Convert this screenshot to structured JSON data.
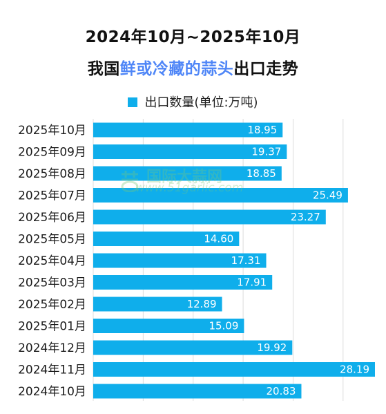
{
  "header": {
    "line1": "2024年10月~2025年10月",
    "line2_prefix": "我国",
    "line2_highlight": "鲜或冷藏的蒜头",
    "line2_suffix": "出口走势"
  },
  "watermark": {
    "text": "国际大蒜网",
    "url": "www.51garlic.com"
  },
  "colors": {
    "bar": "#0faeeb",
    "highlight": "#4f86f7",
    "grid": "#dcdcdc"
  },
  "chart_data": {
    "type": "bar",
    "orientation": "horizontal",
    "legend": "出口数量(单位:万吨)",
    "legend_position": "top-center",
    "categories": [
      "2025年10月",
      "2025年09月",
      "2025年08月",
      "2025年07月",
      "2025年06月",
      "2025年05月",
      "2025年04月",
      "2025年03月",
      "2025年02月",
      "2025年01月",
      "2024年12月",
      "2024年11月",
      "2024年10月"
    ],
    "values": [
      18.95,
      19.37,
      18.85,
      25.49,
      23.27,
      14.6,
      17.31,
      17.91,
      12.89,
      15.09,
      19.92,
      28.19,
      20.83
    ],
    "value_labels": [
      "18.95",
      "19.37",
      "18.85",
      "25.49",
      "23.27",
      "14.60",
      "17.31",
      "17.91",
      "12.89",
      "15.09",
      "19.92",
      "28.19",
      "20.83"
    ],
    "xlim": [
      0,
      28.19
    ],
    "gridlines": [
      0,
      5,
      10,
      15,
      20,
      25
    ],
    "grid": true
  }
}
